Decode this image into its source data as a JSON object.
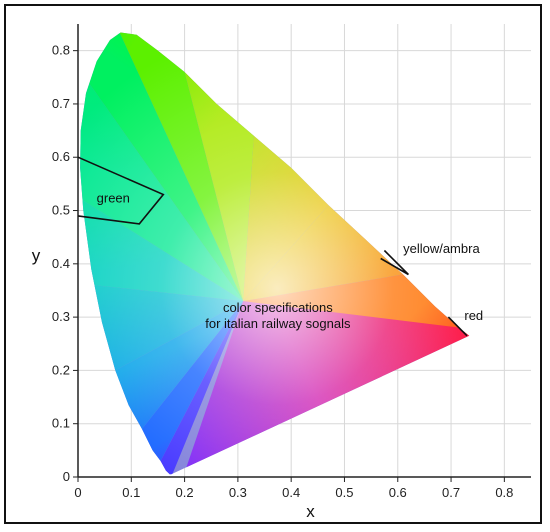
{
  "chart_data": {
    "type": "scatter",
    "title": "",
    "xlabel": "x",
    "ylabel": "y",
    "xlim": [
      0,
      0.85
    ],
    "ylim": [
      0,
      0.85
    ],
    "x_ticks": [
      "0",
      "0.1",
      "0.2",
      "0.3",
      "0.4",
      "0.5",
      "0.6",
      "0.7",
      "0.8"
    ],
    "y_ticks": [
      "0",
      "0.1",
      "0.2",
      "0.3",
      "0.4",
      "0.5",
      "0.6",
      "0.7",
      "0.8"
    ],
    "grid": true,
    "annotation": [
      "color specifications",
      "for italian railway sognals"
    ],
    "regions": [
      {
        "name": "green",
        "points": [
          [
            0.0,
            0.6
          ],
          [
            0.16,
            0.53
          ],
          [
            0.115,
            0.475
          ],
          [
            0.0,
            0.49
          ]
        ]
      },
      {
        "name": "yellow/ambra",
        "points": [
          [
            0.575,
            0.425
          ],
          [
            0.62,
            0.38
          ],
          [
            0.568,
            0.41
          ]
        ]
      },
      {
        "name": "red",
        "points": [
          [
            0.695,
            0.3
          ],
          [
            0.73,
            0.265
          ]
        ]
      }
    ]
  }
}
